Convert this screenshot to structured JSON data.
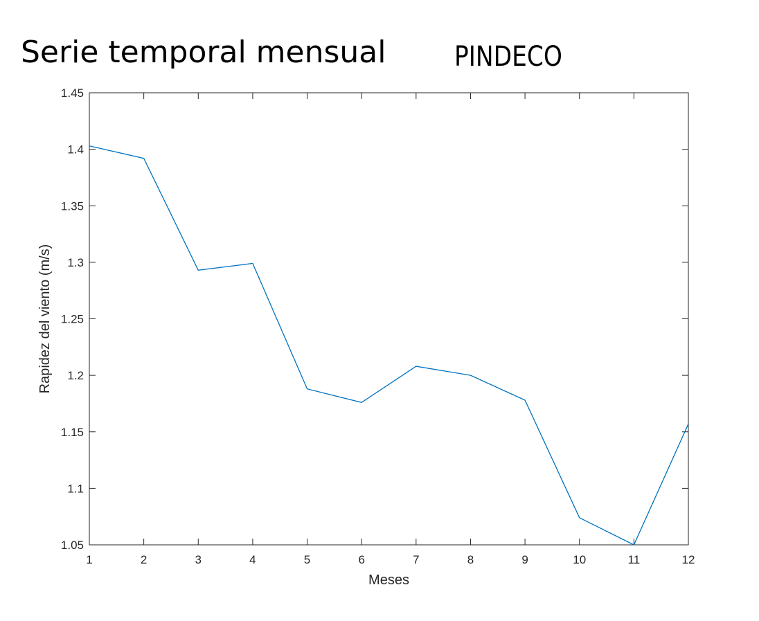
{
  "header": {
    "title": "Serie temporal mensual",
    "station": "PINDECO"
  },
  "chart_data": {
    "type": "line",
    "xlabel": "Meses",
    "ylabel": "Rapidez del viento (m/s)",
    "xlim": [
      1,
      12
    ],
    "ylim": [
      1.05,
      1.45
    ],
    "x_ticks": [
      "1",
      "2",
      "3",
      "4",
      "5",
      "6",
      "7",
      "8",
      "9",
      "10",
      "11",
      "12"
    ],
    "y_ticks": [
      "1.05",
      "1.1",
      "1.15",
      "1.2",
      "1.25",
      "1.3",
      "1.35",
      "1.4",
      "1.45"
    ],
    "grid": false,
    "series": [
      {
        "x": [
          1,
          2,
          3,
          4,
          5,
          6,
          7,
          8,
          9,
          10,
          11,
          12
        ],
        "values": [
          1.403,
          1.392,
          1.293,
          1.299,
          1.188,
          1.176,
          1.208,
          1.2,
          1.178,
          1.074,
          1.05,
          1.157
        ],
        "color": "#0072BD"
      }
    ]
  }
}
